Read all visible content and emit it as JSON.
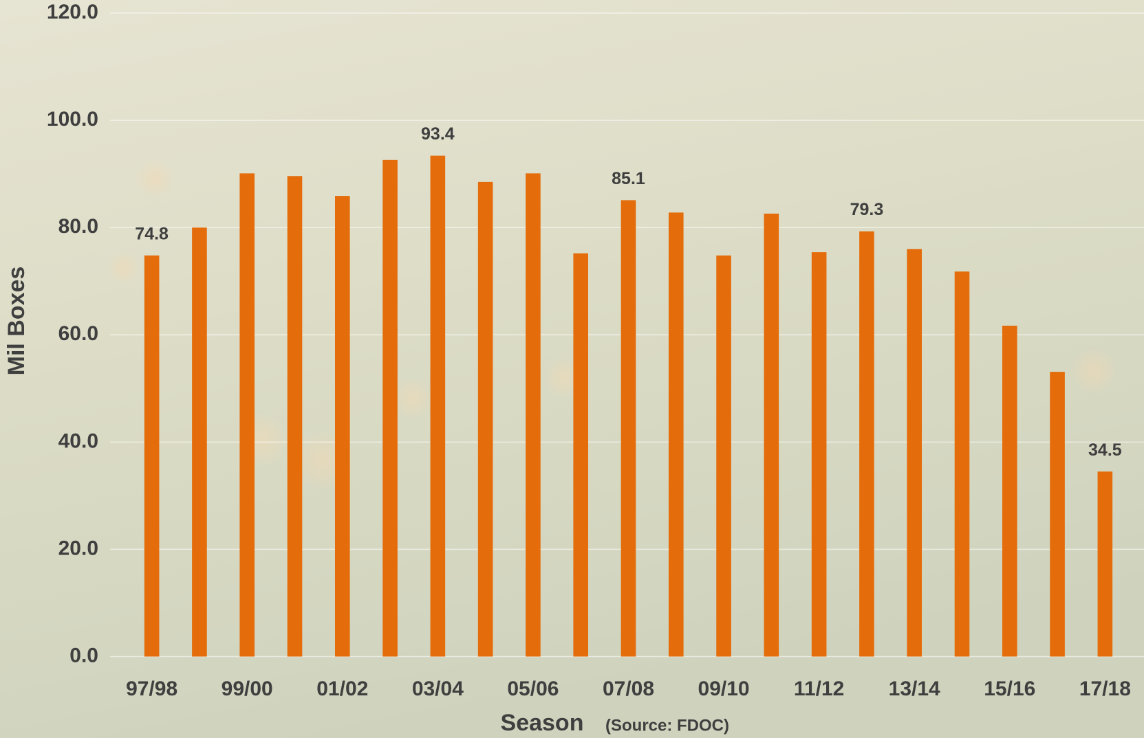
{
  "chart_data": {
    "type": "bar",
    "y_label": "Mil Boxes",
    "x_label": "Season",
    "source": "(Source: FDOC)",
    "categories": [
      "97/98",
      null,
      "99/00",
      null,
      "01/02",
      null,
      "03/04",
      null,
      "05/06",
      null,
      "07/08",
      null,
      "09/10",
      null,
      "11/12",
      null,
      "13/14",
      null,
      "15/16",
      null,
      "17/18"
    ],
    "values": [
      74.8,
      80.0,
      90.1,
      89.6,
      85.9,
      92.6,
      93.4,
      88.5,
      90.1,
      75.2,
      85.1,
      82.8,
      74.8,
      82.6,
      75.4,
      79.3,
      76.0,
      71.8,
      61.7,
      53.1,
      34.5
    ],
    "value_labels": [
      "74.8",
      null,
      null,
      null,
      null,
      null,
      "93.4",
      null,
      null,
      null,
      "85.1",
      null,
      null,
      null,
      null,
      "79.3",
      null,
      null,
      null,
      null,
      "34.5"
    ],
    "color": "#e46c0a",
    "ylim": [
      0,
      120
    ],
    "yticks": [
      {
        "value": 0,
        "label": "0.0"
      },
      {
        "value": 20,
        "label": "20.0"
      },
      {
        "value": 40,
        "label": "40.0"
      },
      {
        "value": 60,
        "label": "60.0"
      },
      {
        "value": 80,
        "label": "80.0"
      },
      {
        "value": 100,
        "label": "100.0"
      },
      {
        "value": 120,
        "label": "120.0"
      }
    ],
    "grid": true
  }
}
